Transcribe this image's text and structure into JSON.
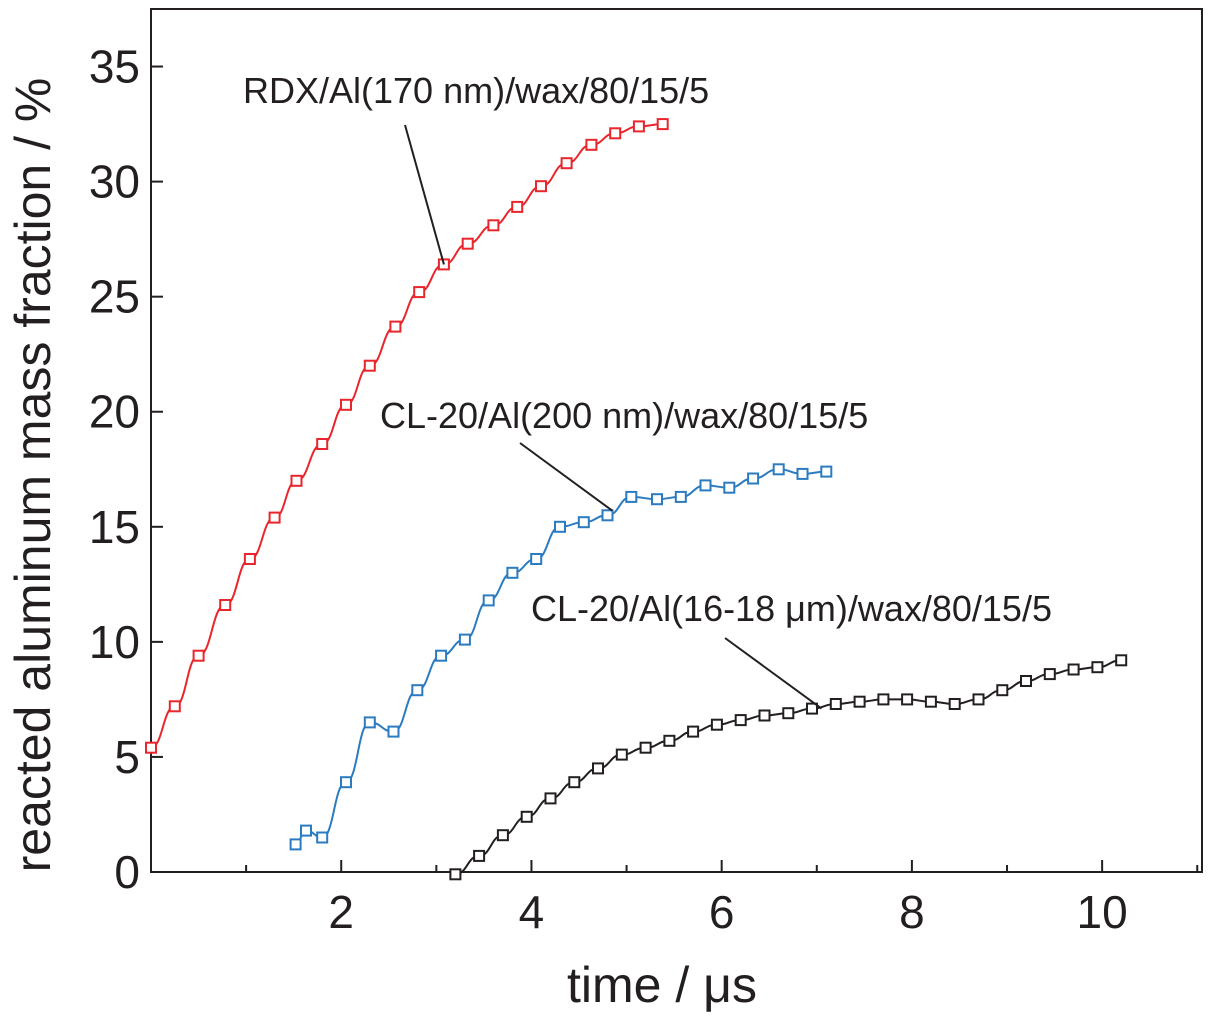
{
  "chart_data": {
    "type": "line",
    "xlabel": "time / μs",
    "ylabel": "reacted aluminum mass fraction / %",
    "xlim": [
      0,
      11.05
    ],
    "ylim": [
      0,
      37.5
    ],
    "x_ticks": [
      2,
      4,
      6,
      8,
      10
    ],
    "y_ticks": [
      0,
      5,
      10,
      15,
      20,
      25,
      30,
      35
    ],
    "grid": false,
    "legend": "none",
    "series": [
      {
        "name": "RDX/Al(170 nm)/wax/80/15/5",
        "color": "#e8262b",
        "marker": "open-square",
        "points": [
          [
            0.0,
            5.4
          ],
          [
            0.25,
            7.2
          ],
          [
            0.5,
            9.4
          ],
          [
            0.78,
            11.6
          ],
          [
            1.04,
            13.6
          ],
          [
            1.3,
            15.4
          ],
          [
            1.53,
            17.0
          ],
          [
            1.8,
            18.6
          ],
          [
            2.05,
            20.3
          ],
          [
            2.3,
            22.0
          ],
          [
            2.57,
            23.7
          ],
          [
            2.82,
            25.2
          ],
          [
            3.08,
            26.4
          ],
          [
            3.33,
            27.3
          ],
          [
            3.6,
            28.1
          ],
          [
            3.85,
            28.9
          ],
          [
            4.1,
            29.8
          ],
          [
            4.37,
            30.8
          ],
          [
            4.63,
            31.6
          ],
          [
            4.88,
            32.1
          ],
          [
            5.13,
            32.4
          ],
          [
            5.38,
            32.5
          ]
        ]
      },
      {
        "name": "CL-20/Al(200 nm)/wax/80/15/5",
        "color": "#2b7bc1",
        "marker": "open-square",
        "points": [
          [
            1.52,
            1.2
          ],
          [
            1.63,
            1.8
          ],
          [
            1.8,
            1.5
          ],
          [
            2.05,
            3.9
          ],
          [
            2.3,
            6.5
          ],
          [
            2.55,
            6.1
          ],
          [
            2.8,
            7.9
          ],
          [
            3.05,
            9.4
          ],
          [
            3.3,
            10.1
          ],
          [
            3.55,
            11.8
          ],
          [
            3.8,
            13.0
          ],
          [
            4.05,
            13.6
          ],
          [
            4.3,
            15.0
          ],
          [
            4.55,
            15.2
          ],
          [
            4.8,
            15.5
          ],
          [
            5.05,
            16.3
          ],
          [
            5.32,
            16.2
          ],
          [
            5.57,
            16.3
          ],
          [
            5.83,
            16.8
          ],
          [
            6.08,
            16.7
          ],
          [
            6.33,
            17.1
          ],
          [
            6.6,
            17.5
          ],
          [
            6.85,
            17.3
          ],
          [
            7.1,
            17.4
          ]
        ]
      },
      {
        "name": "CL-20/Al(16-18 μm)/wax/80/15/5",
        "color": "#231f20",
        "marker": "open-square",
        "points": [
          [
            3.2,
            -0.1
          ],
          [
            3.45,
            0.7
          ],
          [
            3.7,
            1.6
          ],
          [
            3.95,
            2.4
          ],
          [
            4.2,
            3.2
          ],
          [
            4.45,
            3.9
          ],
          [
            4.7,
            4.5
          ],
          [
            4.95,
            5.1
          ],
          [
            5.2,
            5.4
          ],
          [
            5.45,
            5.7
          ],
          [
            5.7,
            6.1
          ],
          [
            5.95,
            6.4
          ],
          [
            6.2,
            6.6
          ],
          [
            6.45,
            6.8
          ],
          [
            6.7,
            6.9
          ],
          [
            6.95,
            7.1
          ],
          [
            7.2,
            7.3
          ],
          [
            7.45,
            7.4
          ],
          [
            7.7,
            7.5
          ],
          [
            7.95,
            7.5
          ],
          [
            8.2,
            7.4
          ],
          [
            8.45,
            7.3
          ],
          [
            8.7,
            7.5
          ],
          [
            8.95,
            7.9
          ],
          [
            9.2,
            8.3
          ],
          [
            9.45,
            8.6
          ],
          [
            9.7,
            8.8
          ],
          [
            9.95,
            8.9
          ],
          [
            10.2,
            9.2
          ]
        ]
      }
    ],
    "annotations": [
      {
        "text": "RDX/Al(170 nm)/wax/80/15/5",
        "series": 0,
        "target": [
          3.08,
          26.4
        ]
      },
      {
        "text": "CL-20/Al(200 nm)/wax/80/15/5",
        "series": 1,
        "target": [
          4.85,
          15.7
        ]
      },
      {
        "text": "CL-20/Al(16-18 μm)/wax/80/15/5",
        "series": 2,
        "target": [
          7.05,
          7.1
        ]
      }
    ]
  }
}
